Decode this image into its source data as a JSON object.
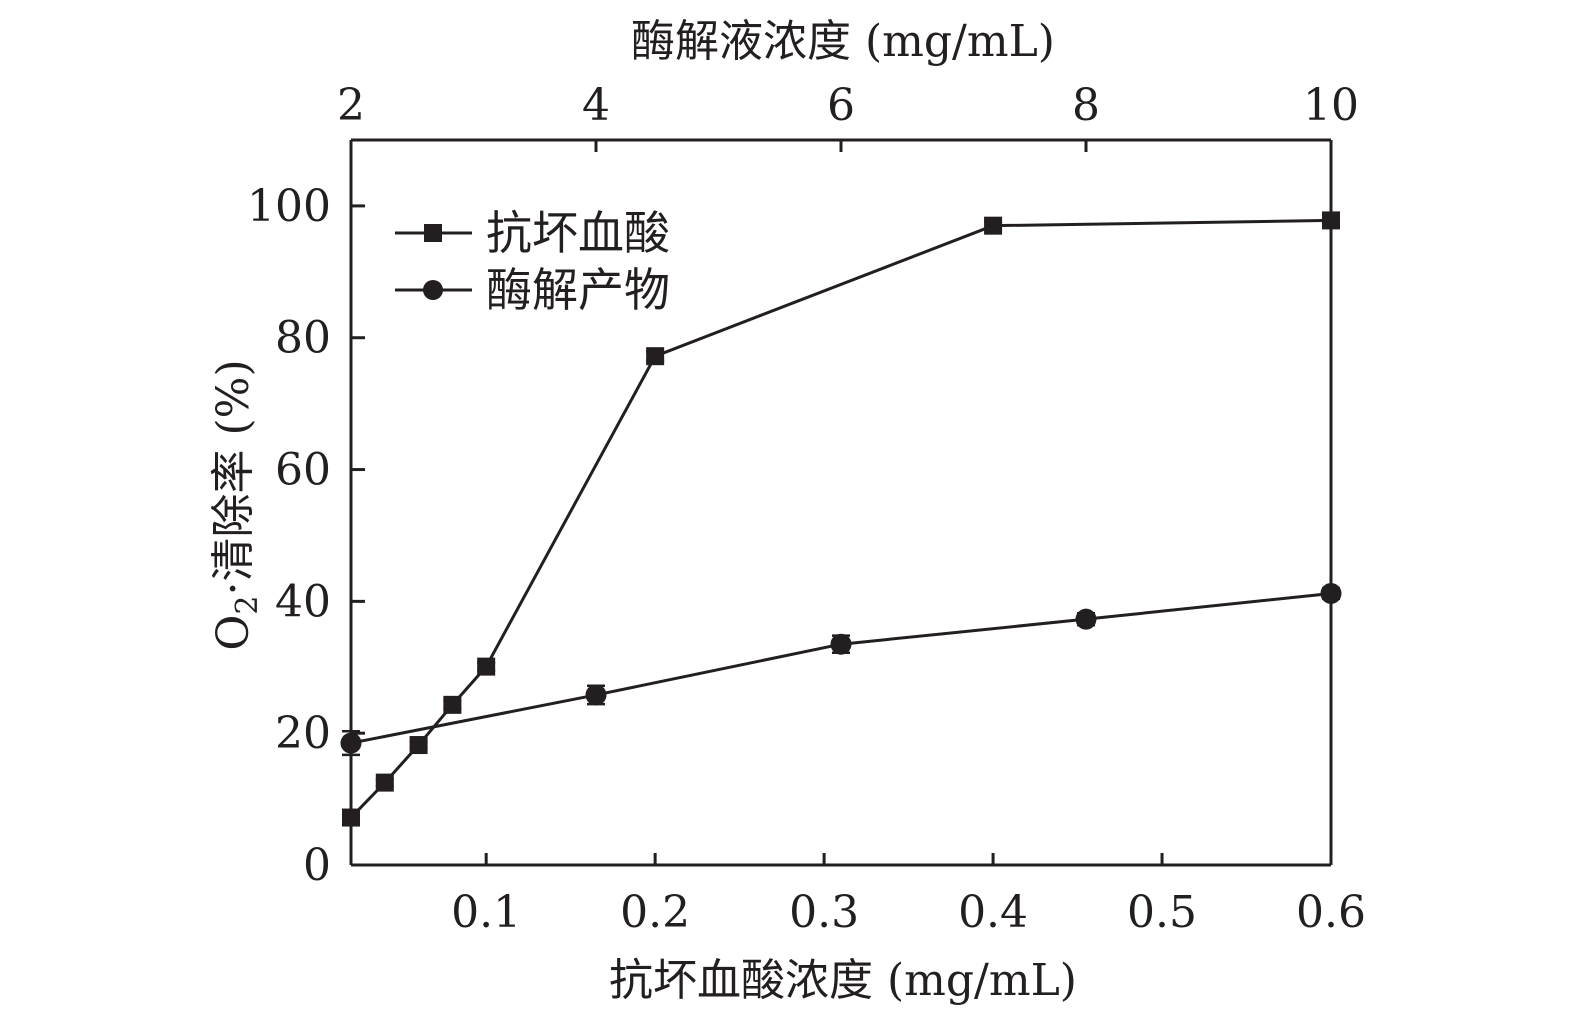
{
  "chart_data": {
    "type": "line",
    "bottom_axis": {
      "label": "抗坏血酸浓度 (mg/mL)",
      "range": [
        0.02,
        0.6
      ],
      "ticks": [
        0.1,
        0.2,
        0.3,
        0.4,
        0.5,
        0.6
      ],
      "tick_labels": [
        "0.1",
        "0.2",
        "0.3",
        "0.4",
        "0.5",
        "0.6"
      ]
    },
    "top_axis": {
      "label": "酶解液浓度 (mg/mL)",
      "range": [
        2,
        10
      ],
      "ticks": [
        2,
        4,
        6,
        8,
        10
      ],
      "tick_labels": [
        "2",
        "4",
        "6",
        "8",
        "10"
      ]
    },
    "y_axis": {
      "label_main": "O",
      "label_sub": "2",
      "label_rest": "·清除率 (%)",
      "range": [
        0,
        110
      ],
      "ticks": [
        0,
        20,
        40,
        60,
        80,
        100
      ],
      "tick_labels": [
        "0",
        "20",
        "40",
        "60",
        "80",
        "100"
      ]
    },
    "legend": {
      "position": "top-left"
    },
    "series": [
      {
        "name": "抗坏血酸",
        "marker": "square",
        "axis": "bottom",
        "x": [
          0.02,
          0.04,
          0.06,
          0.08,
          0.1,
          0.2,
          0.4,
          0.6
        ],
        "y": [
          7.2,
          12.5,
          18.2,
          24.3,
          30.1,
          77.2,
          97.0,
          97.8
        ],
        "err": [
          0.4,
          0.5,
          0.5,
          0.6,
          0.6,
          0.7,
          0.6,
          0.6
        ]
      },
      {
        "name": "酶解产物",
        "marker": "circle",
        "axis": "top",
        "x": [
          2,
          4,
          6,
          8,
          10
        ],
        "y": [
          18.5,
          25.8,
          33.5,
          37.3,
          41.2
        ],
        "err": [
          1.8,
          1.4,
          1.3,
          0.9,
          0.8
        ]
      }
    ]
  }
}
